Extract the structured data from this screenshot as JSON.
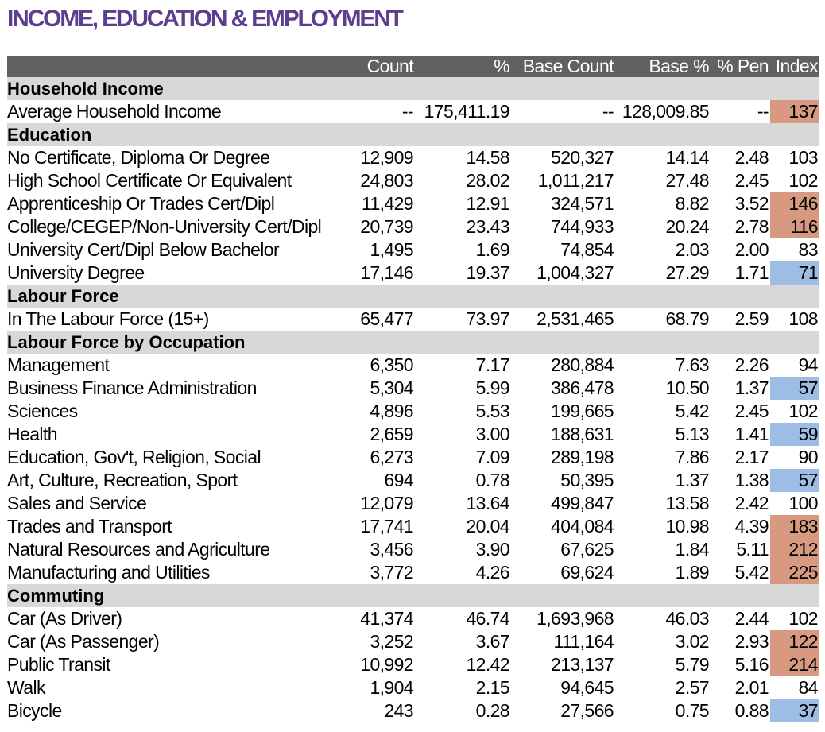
{
  "title": "INCOME, EDUCATION & EMPLOYMENT",
  "columns": [
    "Count",
    "%",
    "Base Count",
    "Base %",
    "% Pen",
    "Index"
  ],
  "sections": [
    {
      "name": "Household Income",
      "rows": [
        {
          "label": "Average Household Income",
          "count": "--",
          "pct": "175,411.19",
          "base_count": "--",
          "base_pct": "128,009.85",
          "pen": "--",
          "index": "137",
          "flag": "hi"
        }
      ]
    },
    {
      "name": "Education",
      "rows": [
        {
          "label": "No Certificate, Diploma Or Degree",
          "count": "12,909",
          "pct": "14.58",
          "base_count": "520,327",
          "base_pct": "14.14",
          "pen": "2.48",
          "index": "103",
          "flag": ""
        },
        {
          "label": "High School Certificate Or Equivalent",
          "count": "24,803",
          "pct": "28.02",
          "base_count": "1,011,217",
          "base_pct": "27.48",
          "pen": "2.45",
          "index": "102",
          "flag": ""
        },
        {
          "label": "Apprenticeship Or Trades Cert/Dipl",
          "count": "11,429",
          "pct": "12.91",
          "base_count": "324,571",
          "base_pct": "8.82",
          "pen": "3.52",
          "index": "146",
          "flag": "hi"
        },
        {
          "label": "College/CEGEP/Non-University Cert/Dipl",
          "count": "20,739",
          "pct": "23.43",
          "base_count": "744,933",
          "base_pct": "20.24",
          "pen": "2.78",
          "index": "116",
          "flag": "hi"
        },
        {
          "label": "University Cert/Dipl Below Bachelor",
          "count": "1,495",
          "pct": "1.69",
          "base_count": "74,854",
          "base_pct": "2.03",
          "pen": "2.00",
          "index": "83",
          "flag": ""
        },
        {
          "label": "University Degree",
          "count": "17,146",
          "pct": "19.37",
          "base_count": "1,004,327",
          "base_pct": "27.29",
          "pen": "1.71",
          "index": "71",
          "flag": "lo"
        }
      ]
    },
    {
      "name": "Labour Force",
      "rows": [
        {
          "label": "In The Labour Force (15+)",
          "count": "65,477",
          "pct": "73.97",
          "base_count": "2,531,465",
          "base_pct": "68.79",
          "pen": "2.59",
          "index": "108",
          "flag": ""
        }
      ]
    },
    {
      "name": "Labour Force by Occupation",
      "rows": [
        {
          "label": "Management",
          "count": "6,350",
          "pct": "7.17",
          "base_count": "280,884",
          "base_pct": "7.63",
          "pen": "2.26",
          "index": "94",
          "flag": ""
        },
        {
          "label": "Business Finance Administration",
          "count": "5,304",
          "pct": "5.99",
          "base_count": "386,478",
          "base_pct": "10.50",
          "pen": "1.37",
          "index": "57",
          "flag": "lo"
        },
        {
          "label": "Sciences",
          "count": "4,896",
          "pct": "5.53",
          "base_count": "199,665",
          "base_pct": "5.42",
          "pen": "2.45",
          "index": "102",
          "flag": ""
        },
        {
          "label": "Health",
          "count": "2,659",
          "pct": "3.00",
          "base_count": "188,631",
          "base_pct": "5.13",
          "pen": "1.41",
          "index": "59",
          "flag": "lo"
        },
        {
          "label": "Education, Gov't, Religion, Social",
          "count": "6,273",
          "pct": "7.09",
          "base_count": "289,198",
          "base_pct": "7.86",
          "pen": "2.17",
          "index": "90",
          "flag": ""
        },
        {
          "label": "Art, Culture, Recreation, Sport",
          "count": "694",
          "pct": "0.78",
          "base_count": "50,395",
          "base_pct": "1.37",
          "pen": "1.38",
          "index": "57",
          "flag": "lo"
        },
        {
          "label": "Sales and Service",
          "count": "12,079",
          "pct": "13.64",
          "base_count": "499,847",
          "base_pct": "13.58",
          "pen": "2.42",
          "index": "100",
          "flag": ""
        },
        {
          "label": "Trades and Transport",
          "count": "17,741",
          "pct": "20.04",
          "base_count": "404,084",
          "base_pct": "10.98",
          "pen": "4.39",
          "index": "183",
          "flag": "hi"
        },
        {
          "label": "Natural Resources and Agriculture",
          "count": "3,456",
          "pct": "3.90",
          "base_count": "67,625",
          "base_pct": "1.84",
          "pen": "5.11",
          "index": "212",
          "flag": "hi"
        },
        {
          "label": "Manufacturing and Utilities",
          "count": "3,772",
          "pct": "4.26",
          "base_count": "69,624",
          "base_pct": "1.89",
          "pen": "5.42",
          "index": "225",
          "flag": "hi"
        }
      ]
    },
    {
      "name": "Commuting",
      "rows": [
        {
          "label": "Car (As Driver)",
          "count": "41,374",
          "pct": "46.74",
          "base_count": "1,693,968",
          "base_pct": "46.03",
          "pen": "2.44",
          "index": "102",
          "flag": ""
        },
        {
          "label": "Car (As Passenger)",
          "count": "3,252",
          "pct": "3.67",
          "base_count": "111,164",
          "base_pct": "3.02",
          "pen": "2.93",
          "index": "122",
          "flag": "hi"
        },
        {
          "label": "Public Transit",
          "count": "10,992",
          "pct": "12.42",
          "base_count": "213,137",
          "base_pct": "5.79",
          "pen": "5.16",
          "index": "214",
          "flag": "hi"
        },
        {
          "label": "Walk",
          "count": "1,904",
          "pct": "2.15",
          "base_count": "94,645",
          "base_pct": "2.57",
          "pen": "2.01",
          "index": "84",
          "flag": ""
        },
        {
          "label": "Bicycle",
          "count": "243",
          "pct": "0.28",
          "base_count": "27,566",
          "base_pct": "0.75",
          "pen": "0.88",
          "index": "37",
          "flag": "lo"
        }
      ]
    }
  ],
  "colors": {
    "title": "#5b3f8e",
    "header_bg": "#616161",
    "section_bg": "#d8d8d8",
    "index_high": "#d79a81",
    "index_low": "#9dbde4"
  }
}
